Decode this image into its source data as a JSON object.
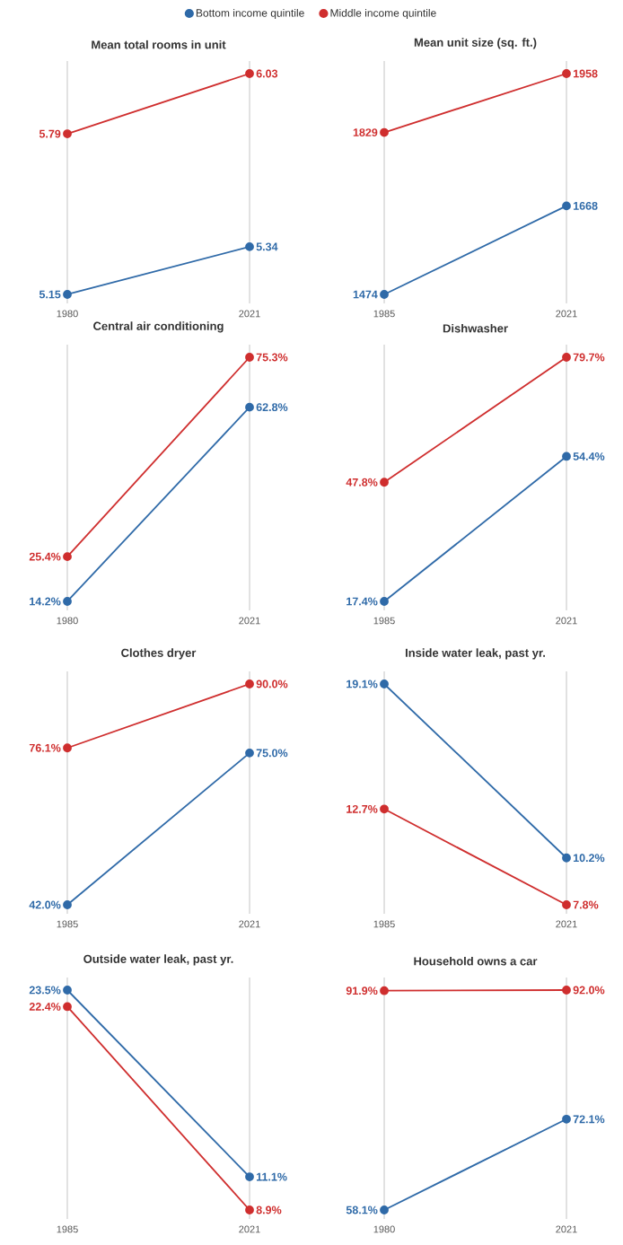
{
  "chart_data": [
    {
      "type": "line",
      "title": "Mean total rooms in unit",
      "categories": [
        "1980",
        "2021"
      ],
      "marker": "circle",
      "grid": "x",
      "legend": "top",
      "series": [
        {
          "name": "Bottom income quintile",
          "color": "#2f6aa8",
          "values": [
            5.15,
            5.34
          ],
          "value_labels": [
            "5.15",
            "5.34"
          ]
        },
        {
          "name": "Middle income quintile",
          "color": "#cf2e2e",
          "values": [
            5.79,
            6.03
          ],
          "value_labels": [
            "5.79",
            "6.03"
          ]
        }
      ]
    },
    {
      "type": "line",
      "title": "Mean unit size (sq. ft.)",
      "categories": [
        "1985",
        "2021"
      ],
      "marker": "circle",
      "grid": "x",
      "series": [
        {
          "color": "#2f6aa8",
          "values": [
            1474,
            1668
          ],
          "value_labels": [
            "1474",
            "1668"
          ]
        },
        {
          "color": "#cf2e2e",
          "values": [
            1829,
            1958
          ],
          "value_labels": [
            "1829",
            "1958"
          ]
        }
      ]
    },
    {
      "type": "line",
      "title": "Central air conditioning",
      "categories": [
        "1980",
        "2021"
      ],
      "marker": "circle",
      "grid": "x",
      "series": [
        {
          "color": "#2f6aa8",
          "values": [
            14.2,
            62.8
          ],
          "value_labels": [
            "14.2%",
            "62.8%"
          ]
        },
        {
          "color": "#cf2e2e",
          "values": [
            25.4,
            75.3
          ],
          "value_labels": [
            "25.4%",
            "75.3%"
          ]
        }
      ]
    },
    {
      "type": "line",
      "title": "Dishwasher",
      "categories": [
        "1985",
        "2021"
      ],
      "marker": "circle",
      "grid": "x",
      "series": [
        {
          "color": "#2f6aa8",
          "values": [
            17.4,
            54.4
          ],
          "value_labels": [
            "17.4%",
            "54.4%"
          ]
        },
        {
          "color": "#cf2e2e",
          "values": [
            47.8,
            79.7
          ],
          "value_labels": [
            "47.8%",
            "79.7%"
          ]
        }
      ]
    },
    {
      "type": "line",
      "title": "Clothes dryer",
      "categories": [
        "1985",
        "2021"
      ],
      "marker": "circle",
      "grid": "x",
      "series": [
        {
          "color": "#2f6aa8",
          "values": [
            42.0,
            75.0
          ],
          "value_labels": [
            "42.0%",
            "75.0%"
          ]
        },
        {
          "color": "#cf2e2e",
          "values": [
            76.1,
            90.0
          ],
          "value_labels": [
            "76.1%",
            "90.0%"
          ]
        }
      ]
    },
    {
      "type": "line",
      "title": "Inside water leak, past yr.",
      "categories": [
        "1985",
        "2021"
      ],
      "marker": "circle",
      "grid": "x",
      "series": [
        {
          "color": "#2f6aa8",
          "values": [
            19.1,
            10.2
          ],
          "value_labels": [
            "19.1%",
            "10.2%"
          ]
        },
        {
          "color": "#cf2e2e",
          "values": [
            12.7,
            7.8
          ],
          "value_labels": [
            "12.7%",
            "7.8%"
          ]
        }
      ]
    },
    {
      "type": "line",
      "title": "Outside water leak, past yr.",
      "categories": [
        "1985",
        "2021"
      ],
      "marker": "circle",
      "grid": "x",
      "series": [
        {
          "color": "#2f6aa8",
          "values": [
            23.5,
            11.1
          ],
          "value_labels": [
            "23.5%",
            "11.1%"
          ]
        },
        {
          "color": "#cf2e2e",
          "values": [
            22.4,
            8.9
          ],
          "value_labels": [
            "22.4%",
            "8.9%"
          ]
        }
      ]
    },
    {
      "type": "line",
      "title": "Household owns a car",
      "categories": [
        "1980",
        "2021"
      ],
      "marker": "circle",
      "grid": "x",
      "series": [
        {
          "color": "#2f6aa8",
          "values": [
            58.1,
            72.1
          ],
          "value_labels": [
            "58.1%",
            "72.1%"
          ]
        },
        {
          "color": "#cf2e2e",
          "values": [
            91.9,
            92.0
          ],
          "value_labels": [
            "91.9%",
            "92.0%"
          ]
        }
      ]
    }
  ]
}
